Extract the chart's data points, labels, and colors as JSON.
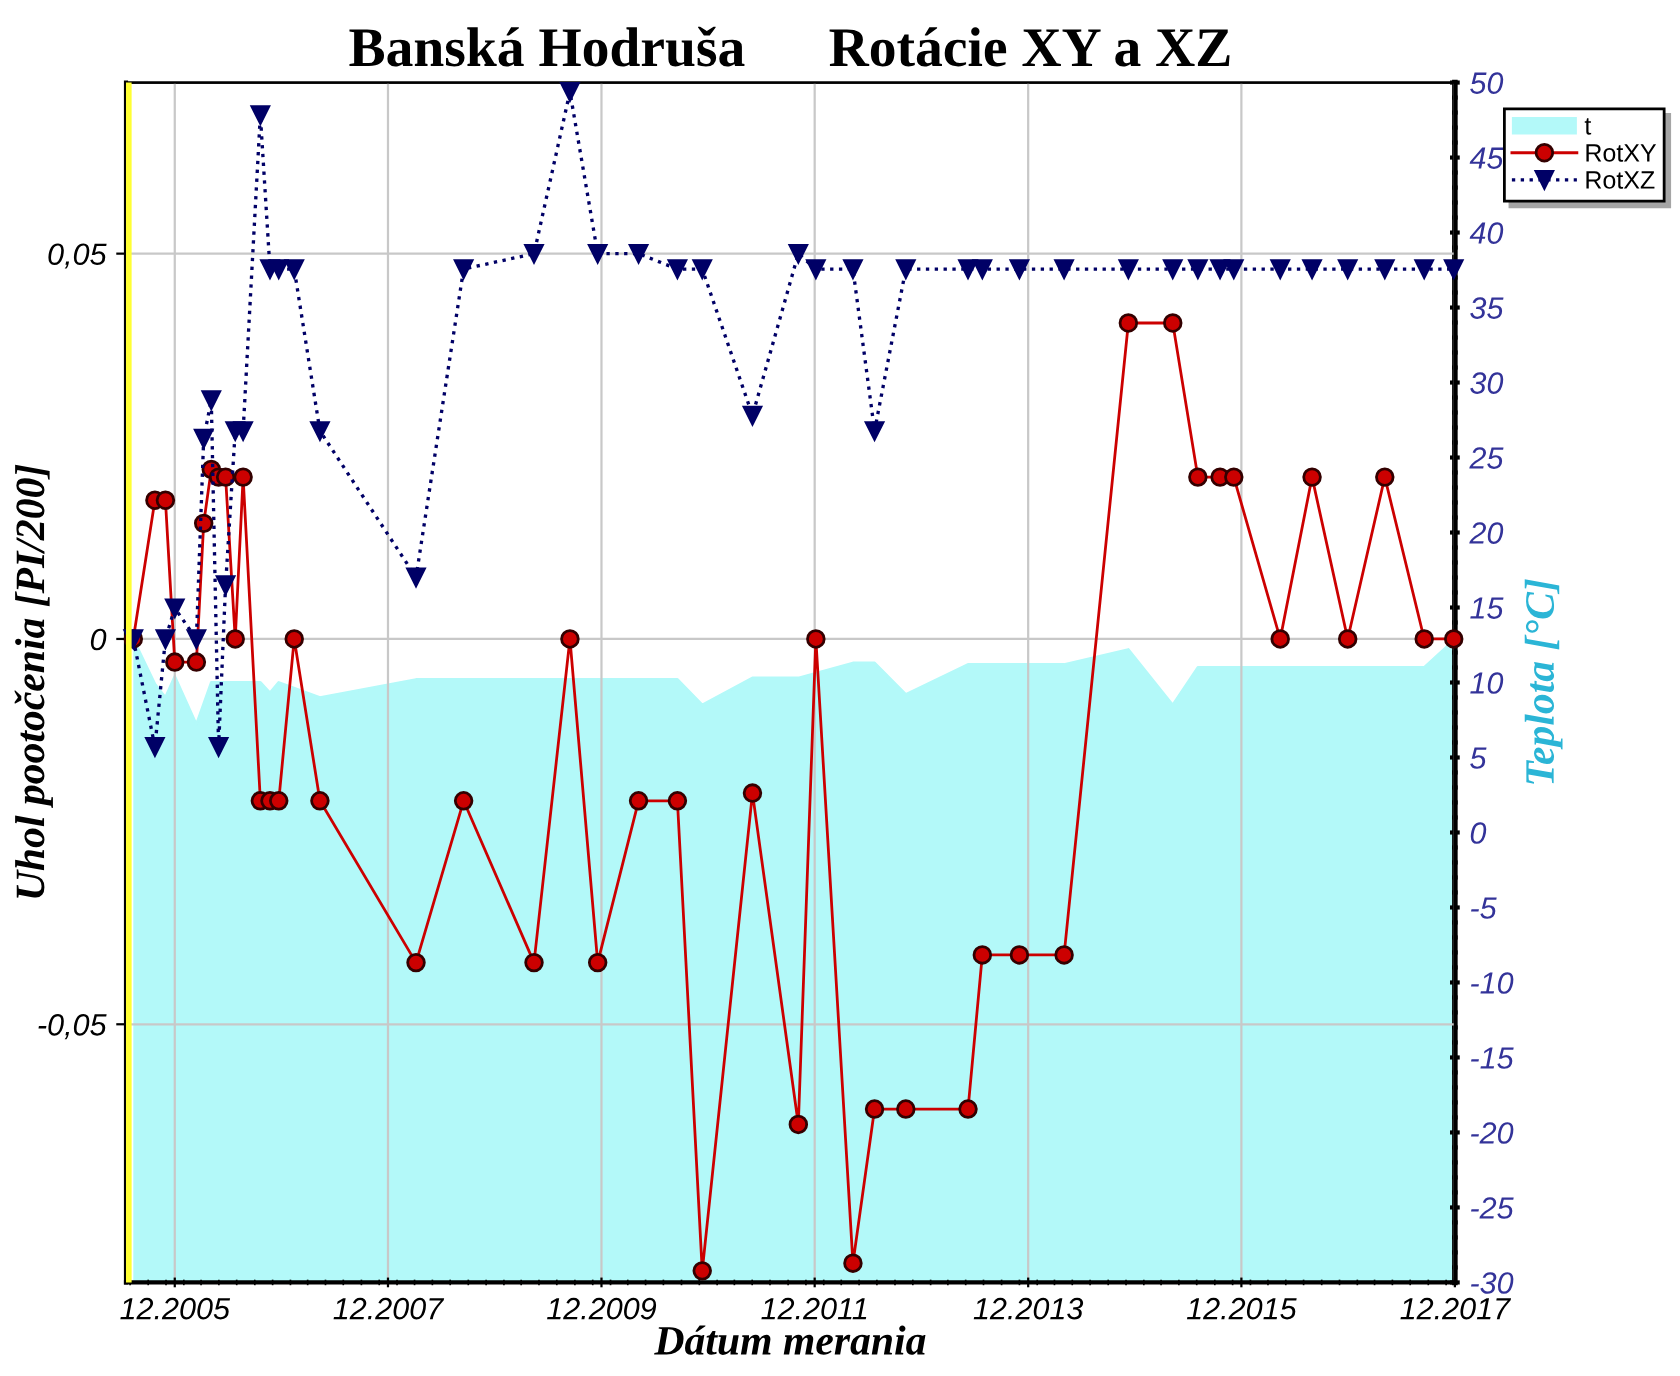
{
  "chart_data": {
    "type": "line",
    "title": "Banská Hodruša      Rotácie XY a XZ",
    "xlabel": "Dátum merania",
    "ylabel": "Uhol pootočenia [PI/200]",
    "y2label": "Teplota [°C]",
    "x": [
      "2005-07-12",
      "2005-09-24",
      "2005-10-30",
      "2005-12-01",
      "2006-02-13",
      "2006-03-10",
      "2006-04-05",
      "2006-04-30",
      "2006-05-24",
      "2006-06-26",
      "2006-07-23",
      "2006-09-20",
      "2006-10-23",
      "2006-11-22",
      "2007-01-14",
      "2007-04-12",
      "2008-03-06",
      "2008-08-16",
      "2009-04-14",
      "2009-08-15",
      "2009-11-18",
      "2010-04-07",
      "2010-08-18",
      "2010-11-11",
      "2011-05-02",
      "2011-10-06",
      "2011-12-05",
      "2012-04-10",
      "2012-06-23",
      "2012-10-08",
      "2013-05-09",
      "2013-06-27",
      "2013-11-01",
      "2014-04-03",
      "2014-11-09",
      "2015-04-10",
      "2015-07-05",
      "2015-09-19",
      "2015-11-05",
      "2016-04-12",
      "2016-07-30",
      "2016-11-29",
      "2017-04-05",
      "2017-08-18",
      "2017-11-27"
    ],
    "series": [
      {
        "name": "t",
        "type": "area",
        "axis": "y2",
        "color": "#b3f9f9",
        "x": [
          "2005-07-12",
          "2005-09-24",
          "2005-10-30",
          "2005-12-01",
          "2006-02-13",
          "2006-04-05",
          "2006-09-20",
          "2006-10-23",
          "2006-11-22",
          "2007-04-12",
          "2008-03-06",
          "2010-08-18",
          "2010-11-11",
          "2011-05-02",
          "2011-10-06",
          "2012-04-10",
          "2012-06-23",
          "2012-10-08",
          "2013-05-09",
          "2014-04-03",
          "2014-11-09",
          "2015-04-10",
          "2015-07-05",
          "2017-08-18",
          "2017-11-27"
        ],
        "values": [
          12.9,
          9.9,
          9.0,
          10.4,
          7.2,
          10.0,
          10.0,
          9.3,
          10.0,
          9.0,
          10.2,
          10.2,
          8.5,
          10.3,
          10.3,
          11.3,
          11.3,
          9.2,
          11.2,
          11.2,
          12.2,
          8.5,
          11.0,
          11.0,
          12.8
        ]
      },
      {
        "name": "RotXY",
        "color": "#cc0000",
        "marker": "circle",
        "line_style": "solid",
        "values": [
          0,
          0.018,
          0.018,
          -0.003,
          -0.003,
          0.015,
          0.022,
          0.021,
          0.021,
          0,
          0.021,
          -0.021,
          -0.021,
          -0.021,
          0,
          -0.021,
          -0.042,
          -0.021,
          -0.042,
          0,
          -0.042,
          -0.021,
          -0.021,
          -0.082,
          -0.02,
          -0.063,
          0,
          -0.081,
          -0.061,
          -0.061,
          -0.061,
          -0.041,
          -0.041,
          -0.041,
          0.041,
          0.041,
          0.021,
          0.021,
          0.021,
          0,
          0.021,
          0,
          0.021,
          0,
          0
        ]
      },
      {
        "name": "RotXZ",
        "color": "#000066",
        "marker": "triangle",
        "line_style": "dotted",
        "values": [
          0,
          -0.014,
          0,
          0.004,
          0,
          0.026,
          0.031,
          -0.014,
          0.007,
          0.027,
          0.027,
          0.068,
          0.048,
          0.048,
          0.048,
          0.027,
          0.008,
          0.048,
          0.05,
          0.071,
          0.05,
          0.05,
          0.048,
          0.048,
          0.029,
          0.05,
          0.048,
          0.048,
          0.027,
          0.048,
          0.048,
          0.048,
          0.048,
          0.048,
          0.048,
          0.048,
          0.048,
          0.048,
          0.048,
          0.048,
          0.048,
          0.048,
          0.048,
          0.048,
          0.048
        ]
      }
    ],
    "xlim": [
      "2005-06-17",
      "2017-12-01"
    ],
    "xticks": [
      {
        "value": "2005-12-01",
        "label": "12.2005"
      },
      {
        "value": "2007-12-01",
        "label": "12.2007"
      },
      {
        "value": "2009-12-01",
        "label": "12.2009"
      },
      {
        "value": "2011-12-01",
        "label": "12.2011"
      },
      {
        "value": "2013-12-01",
        "label": "12.2013"
      },
      {
        "value": "2015-12-01",
        "label": "12.2015"
      },
      {
        "value": "2017-12-01",
        "label": "12.2017"
      }
    ],
    "ylim": [
      -0.0835,
      0.0722
    ],
    "yticks": [
      {
        "value": -0.05,
        "label": "-0,05"
      },
      {
        "value": 0,
        "label": "0"
      },
      {
        "value": 0.05,
        "label": "0,05"
      }
    ],
    "y2lim": [
      -30,
      50
    ],
    "y2ticks": [
      -30,
      -25,
      -20,
      -15,
      -10,
      -5,
      0,
      5,
      10,
      15,
      20,
      25,
      30,
      35,
      40,
      45,
      50
    ],
    "ref_lines": [
      {
        "axis": "x",
        "value": "2005-06-22",
        "label": null,
        "color": "#ffff33"
      }
    ],
    "grid": true,
    "legend": "top right"
  }
}
